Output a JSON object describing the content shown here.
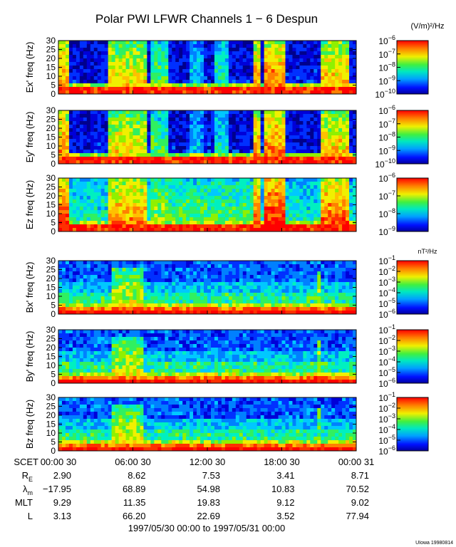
{
  "title": "Polar PWI LFWR Channels 1 − 6 Despun",
  "e_units": "(V/m)²/Hz",
  "b_units": "nT²/Hz",
  "chart_data": {
    "type": "heatmap",
    "panels": [
      {
        "ylabel": "Ex' freq (Hz)",
        "ylim": [
          0,
          30
        ],
        "yticks": [
          0,
          5,
          10,
          15,
          20,
          25,
          30
        ]
      },
      {
        "ylabel": "Ey' freq (Hz)",
        "ylim": [
          0,
          30
        ],
        "yticks": [
          0,
          5,
          10,
          15,
          20,
          25,
          30
        ]
      },
      {
        "ylabel": "Ez freq (Hz)",
        "ylim": [
          0,
          30
        ],
        "yticks": [
          0,
          5,
          10,
          15,
          20,
          25,
          30
        ]
      },
      {
        "ylabel": "Bx' freq (Hz)",
        "ylim": [
          0,
          30
        ],
        "yticks": [
          0,
          5,
          10,
          15,
          20,
          25,
          30
        ]
      },
      {
        "ylabel": "By' freq (Hz)",
        "ylim": [
          0,
          30
        ],
        "yticks": [
          0,
          5,
          10,
          15,
          20,
          25,
          30
        ]
      },
      {
        "ylabel": "Bz freq (Hz)",
        "ylim": [
          0,
          30
        ],
        "yticks": [
          0,
          5,
          10,
          15,
          20,
          25,
          30
        ]
      }
    ],
    "colorbars": [
      {
        "units": "(V/m)²/Hz",
        "ticks": [
          {
            "base": "10",
            "exp": "−6"
          },
          {
            "base": "10",
            "exp": "−7"
          },
          {
            "base": "10",
            "exp": "−8"
          },
          {
            "base": "10",
            "exp": "−9"
          },
          {
            "base": "10",
            "exp": "−10"
          }
        ]
      },
      {
        "units": "",
        "ticks": [
          {
            "base": "10",
            "exp": "−6"
          },
          {
            "base": "10",
            "exp": "−7"
          },
          {
            "base": "10",
            "exp": "−8"
          },
          {
            "base": "10",
            "exp": "−9"
          },
          {
            "base": "10",
            "exp": "−10"
          }
        ]
      },
      {
        "units": "",
        "ticks": [
          {
            "base": "10",
            "exp": "−6"
          },
          {
            "base": "10",
            "exp": "−7"
          },
          {
            "base": "10",
            "exp": "−8"
          },
          {
            "base": "10",
            "exp": "−9"
          }
        ]
      },
      {
        "units": "nT²/Hz",
        "ticks": [
          {
            "base": "10",
            "exp": "−1"
          },
          {
            "base": "10",
            "exp": "−2"
          },
          {
            "base": "10",
            "exp": "−3"
          },
          {
            "base": "10",
            "exp": "−4"
          },
          {
            "base": "10",
            "exp": "−5"
          },
          {
            "base": "10",
            "exp": "−6"
          }
        ]
      },
      {
        "units": "",
        "ticks": [
          {
            "base": "10",
            "exp": "−1"
          },
          {
            "base": "10",
            "exp": "−2"
          },
          {
            "base": "10",
            "exp": "−3"
          },
          {
            "base": "10",
            "exp": "−4"
          },
          {
            "base": "10",
            "exp": "−5"
          },
          {
            "base": "10",
            "exp": "−6"
          }
        ]
      },
      {
        "units": "",
        "ticks": [
          {
            "base": "10",
            "exp": "−1"
          },
          {
            "base": "10",
            "exp": "−2"
          },
          {
            "base": "10",
            "exp": "−3"
          },
          {
            "base": "10",
            "exp": "−4"
          },
          {
            "base": "10",
            "exp": "−5"
          },
          {
            "base": "10",
            "exp": "−6"
          }
        ]
      }
    ],
    "x_ticks": [
      "00:00 30",
      "06:00 30",
      "12:00 30",
      "18:00 30",
      "00:00 31"
    ],
    "ephemeris": [
      {
        "label": "SCET",
        "sub": "",
        "values": []
      },
      {
        "label": "R",
        "sub": "E",
        "values": [
          "2.90",
          "8.62",
          "7.53",
          "3.41",
          "8.71"
        ]
      },
      {
        "label": "λ",
        "sub": "m",
        "values": [
          "−17.95",
          "68.89",
          "54.98",
          "10.83",
          "70.52"
        ]
      },
      {
        "label": "MLT",
        "sub": "",
        "values": [
          "9.29",
          "11.35",
          "19.83",
          "9.12",
          "9.02"
        ]
      },
      {
        "label": "L",
        "sub": "",
        "values": [
          "3.13",
          "66.20",
          "22.69",
          "3.52",
          "77.94"
        ]
      }
    ],
    "date_range": "1997/05/30 00:00 to 1997/05/31 00:00",
    "footer": "UIowa 19980814"
  }
}
